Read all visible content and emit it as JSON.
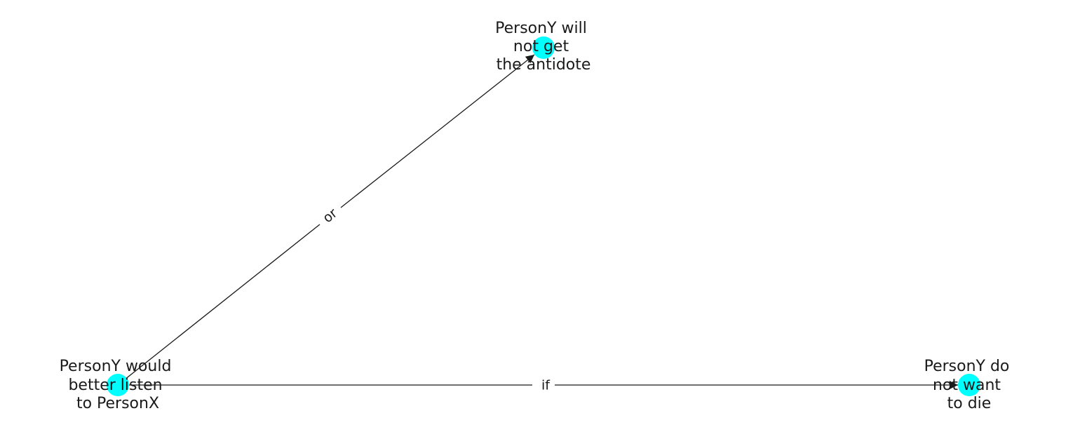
{
  "node_color": "#00ffff",
  "edge_color": "#1a1a1a",
  "nodes": [
    {
      "id": "n0",
      "label_lines": [
        "PersonY would",
        "better listen",
        "to PersonX"
      ]
    },
    {
      "id": "n1",
      "label_lines": [
        "PersonY will",
        "not get",
        "the antidote"
      ]
    },
    {
      "id": "n2",
      "label_lines": [
        "PersonY do",
        "not want",
        "to die"
      ]
    }
  ],
  "edges": [
    {
      "from": "n0",
      "to": "n1",
      "label": "or"
    },
    {
      "from": "n0",
      "to": "n2",
      "label": "if"
    }
  ]
}
